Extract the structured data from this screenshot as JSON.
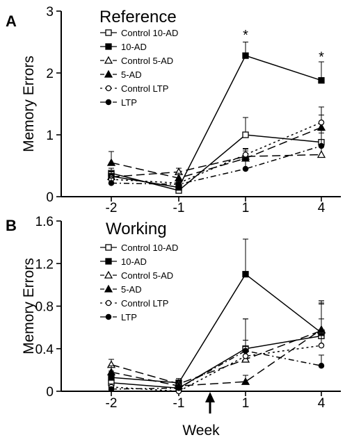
{
  "chart_data": [
    {
      "type": "line",
      "panel_label": "A",
      "title": "Reference",
      "ylabel": "Memory Errors",
      "xlabel": "",
      "categories": [
        "-2",
        "-1",
        "1",
        "4"
      ],
      "ylim": [
        0,
        3
      ],
      "yticks": [
        "0",
        "1",
        "2",
        "3"
      ],
      "legend_position": "top-left",
      "annotations": [
        {
          "text": "*",
          "category_index": 2,
          "value": 2.65
        },
        {
          "text": "*",
          "category_index": 3,
          "value": 2.3
        }
      ],
      "series": [
        {
          "name": "Control 10-AD",
          "values": [
            0.38,
            0.1,
            1.0,
            0.88
          ],
          "errors": [
            0.08,
            0.04,
            0.28,
            0.15
          ]
        },
        {
          "name": "10-AD",
          "values": [
            0.33,
            0.15,
            2.28,
            1.88
          ],
          "errors": [
            0.08,
            0.05,
            0.22,
            0.3
          ]
        },
        {
          "name": "Control 5-AD",
          "values": [
            0.32,
            0.4,
            0.65,
            0.68
          ],
          "errors": [
            0.08,
            0.06,
            0.12,
            0.15
          ]
        },
        {
          "name": "5-AD",
          "values": [
            0.55,
            0.3,
            0.62,
            1.12
          ],
          "errors": [
            0.18,
            0.08,
            0.12,
            0.2
          ]
        },
        {
          "name": "Control LTP",
          "values": [
            0.28,
            0.22,
            0.68,
            1.2
          ],
          "errors": [
            0.08,
            0.05,
            0.1,
            0.25
          ]
        },
        {
          "name": "LTP",
          "values": [
            0.22,
            0.2,
            0.45,
            0.82
          ],
          "errors": [
            0.08,
            0.05,
            0.15,
            0.25
          ]
        }
      ]
    },
    {
      "type": "line",
      "panel_label": "B",
      "title": "Working",
      "ylabel": "Memory Errors",
      "xlabel": "Week",
      "categories": [
        "-2",
        "-1",
        "1",
        "4"
      ],
      "ylim": [
        0,
        1.6
      ],
      "yticks": [
        "0",
        "0.4",
        "0.8",
        "1.2",
        "1.6"
      ],
      "legend_position": "top-left",
      "annotations": [],
      "series": [
        {
          "name": "Control 10-AD",
          "values": [
            0.08,
            0.03,
            0.4,
            0.52
          ],
          "errors": [
            0.04,
            0.03,
            0.28,
            0.3
          ]
        },
        {
          "name": "10-AD",
          "values": [
            0.13,
            0.08,
            1.1,
            0.55
          ],
          "errors": [
            0.06,
            0.04,
            0.33,
            0.28
          ]
        },
        {
          "name": "Control 5-AD",
          "values": [
            0.25,
            0.07,
            0.3,
            0.57
          ],
          "errors": [
            0.05,
            0.03,
            0.12,
            0.28
          ]
        },
        {
          "name": "5-AD",
          "values": [
            0.18,
            0.05,
            0.09,
            0.58
          ],
          "errors": [
            0.06,
            0.03,
            0.06,
            0.27
          ]
        },
        {
          "name": "Control LTP",
          "values": [
            0.04,
            0.0,
            0.33,
            0.43
          ],
          "errors": [
            0.03,
            0.02,
            0.35,
            0.25
          ]
        },
        {
          "name": "LTP",
          "values": [
            0.02,
            0.03,
            0.38,
            0.24
          ],
          "errors": [
            0.02,
            0.02,
            0.1,
            0.1
          ]
        }
      ]
    }
  ],
  "treatment_marker": {
    "between_categories": [
      "-1",
      "1"
    ],
    "icon": "up-arrow-icon"
  }
}
